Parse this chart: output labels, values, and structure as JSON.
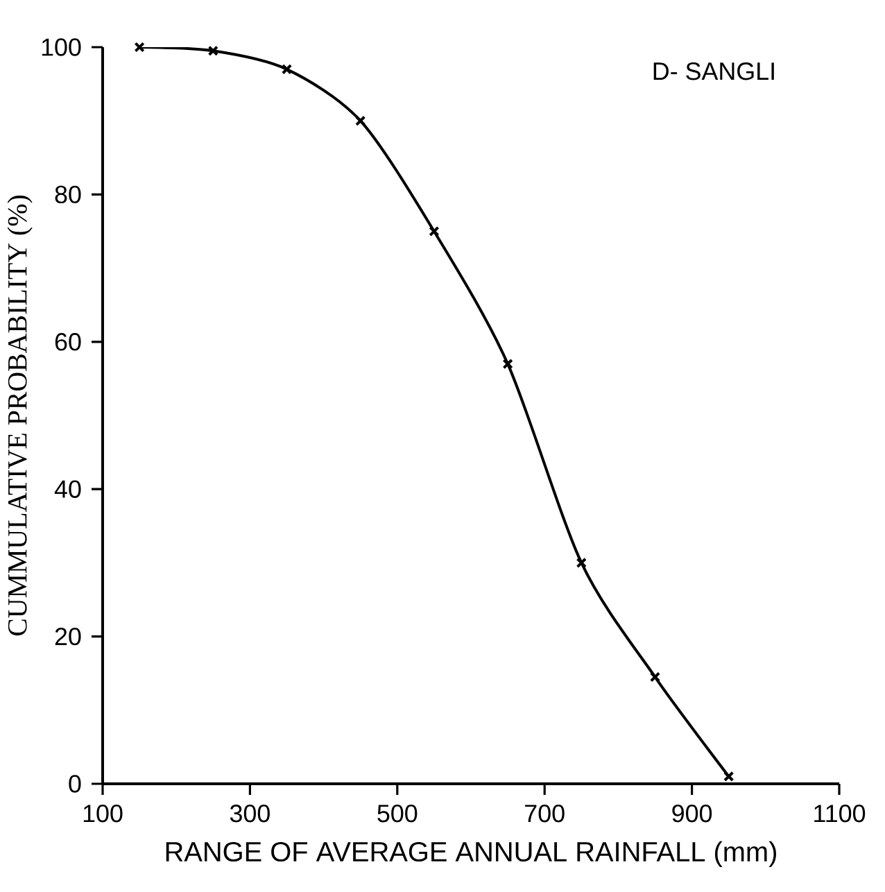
{
  "chart_data": {
    "type": "line",
    "title": "D- SANGLI",
    "xlabel": "RANGE OF AVERAGE ANNUAL RAINFALL (mm)",
    "ylabel": "CUMMULATIVE PROBABILITY (%)",
    "x": [
      150,
      250,
      350,
      450,
      550,
      650,
      750,
      850,
      950
    ],
    "series": [
      {
        "color": "#000000",
        "values": [
          100,
          99.5,
          97,
          90,
          75,
          57,
          30,
          14.5,
          1
        ]
      }
    ],
    "xlim": [
      100,
      1100
    ],
    "ylim": [
      0,
      100
    ],
    "xticks": [
      100,
      300,
      500,
      700,
      900,
      1100
    ],
    "yticks": [
      0,
      20,
      40,
      60,
      80,
      100
    ],
    "marker": "cross",
    "line_style": "solid"
  }
}
